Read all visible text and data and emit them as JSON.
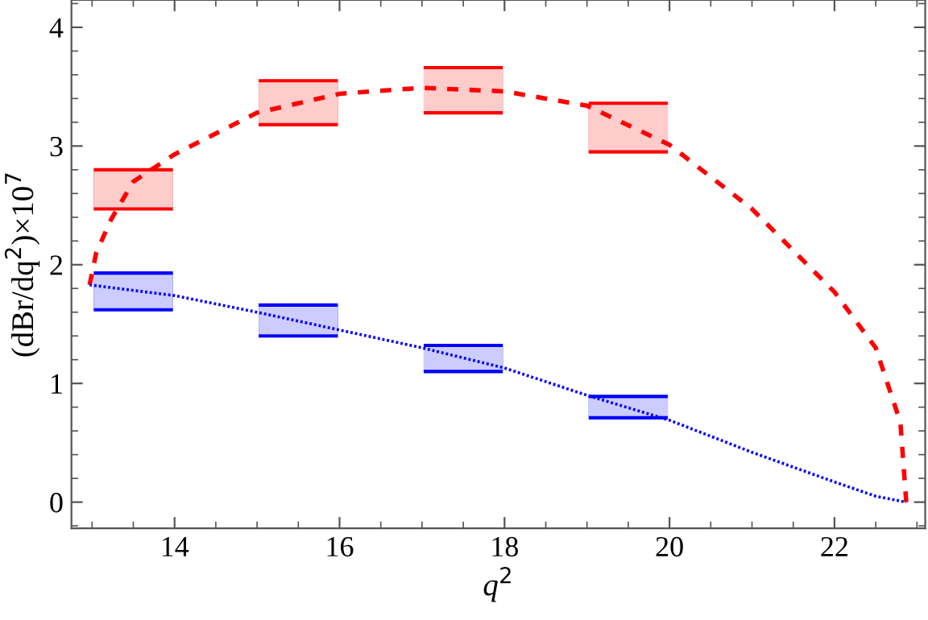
{
  "chart_data": {
    "type": "line",
    "xlabel": "q$^{2}$",
    "ylabel": "(dBr/dq$^{2}$)×10$^{7}$",
    "xlim": [
      12.75,
      23.1
    ],
    "ylim": [
      -0.22,
      4.23
    ],
    "xticks": [
      14,
      16,
      18,
      20,
      22
    ],
    "yticks": [
      0,
      1,
      2,
      3,
      4
    ],
    "grid": false,
    "series": [
      {
        "type": "bar",
        "color": "#ff0000",
        "x": [
          13.5,
          15.5,
          17.5,
          19.5
        ],
        "base": [
          2.47,
          3.18,
          3.28,
          2.95
        ],
        "values": [
          0.33,
          0.37,
          0.38,
          0.41
        ]
      },
      {
        "type": "bar",
        "color": "#0000ff",
        "x": [
          13.5,
          15.5,
          17.5,
          19.5
        ],
        "base": [
          1.62,
          1.4,
          1.1,
          0.71
        ],
        "values": [
          0.31,
          0.26,
          0.22,
          0.18
        ]
      },
      {
        "color": "#ff0000",
        "line_style": "dashed",
        "x": [
          12.97,
          13.05,
          13.23,
          13.5,
          14,
          15,
          16,
          17,
          18,
          19,
          20,
          21,
          22,
          22.5,
          22.8,
          22.87
        ],
        "values": [
          1.83,
          2.1,
          2.38,
          2.7,
          2.93,
          3.28,
          3.44,
          3.49,
          3.46,
          3.34,
          3.01,
          2.47,
          1.77,
          1.3,
          0.67,
          0.0
        ]
      },
      {
        "color": "#0000ff",
        "line_style": "dotted",
        "x": [
          12.97,
          14,
          15,
          16,
          17,
          18,
          19,
          20,
          21,
          22,
          22.5,
          22.87
        ],
        "values": [
          1.83,
          1.74,
          1.6,
          1.45,
          1.3,
          1.13,
          0.9,
          0.69,
          0.42,
          0.17,
          0.05,
          0.0
        ]
      }
    ]
  }
}
